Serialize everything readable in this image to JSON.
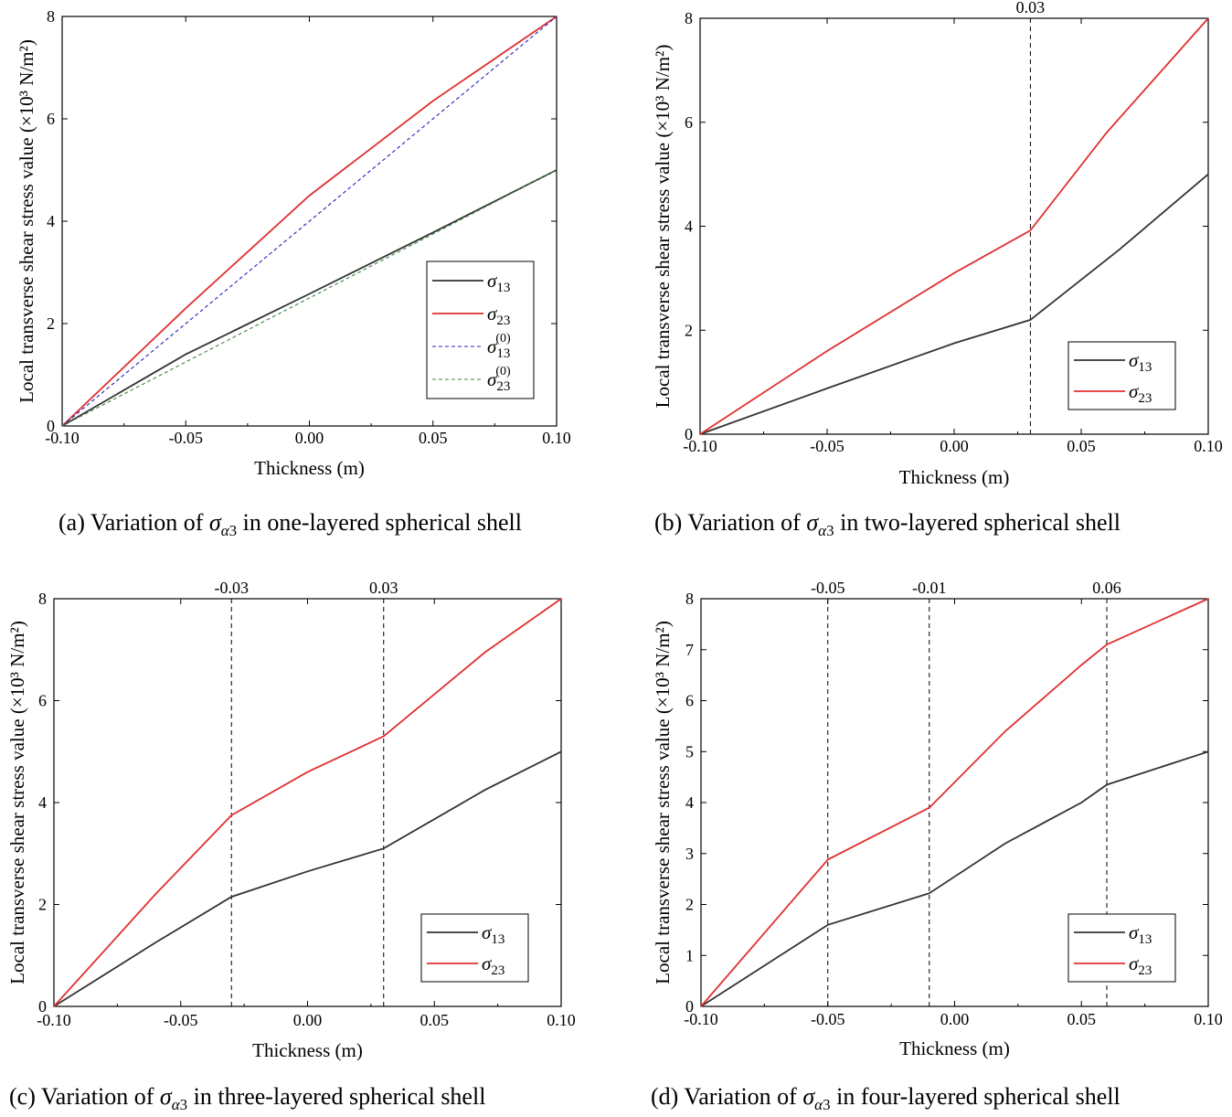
{
  "captions": {
    "a": {
      "label": "(a)",
      "pre": "Variation of",
      "sym": "σ",
      "sub_greek": "α",
      "sub_digit": "3",
      "post": "in one-layered spherical shell"
    },
    "b": {
      "label": "(b)",
      "pre": "Variation of",
      "sym": "σ",
      "sub_greek": "α",
      "sub_digit": "3",
      "post": "in two-layered spherical shell"
    },
    "c": {
      "label": "(c)",
      "pre": "Variation of",
      "sym": "σ",
      "sub_greek": "α",
      "sub_digit": "3",
      "post": "in three-layered spherical shell"
    },
    "d": {
      "label": "(d)",
      "pre": "Variation of",
      "sym": "σ",
      "sub_greek": "α",
      "sub_digit": "3",
      "post": "in four-layered spherical shell"
    }
  },
  "chart_data": [
    {
      "type": "line",
      "xlabel": "Thickness (m)",
      "ylabel": "Local transverse shear stress value (×10³ N/m²)",
      "xlim": [
        -0.1,
        0.1
      ],
      "ylim": [
        0,
        8
      ],
      "xticks": [
        "-0.10",
        "-0.05",
        "0.00",
        "0.05",
        "0.10"
      ],
      "yticks": [
        "0",
        "2",
        "4",
        "6",
        "8"
      ],
      "interfaces": [],
      "legend_position": "bottom-right",
      "series": [
        {
          "name": "σ13",
          "color": "#333333",
          "dash": "solid",
          "x": [
            -0.1,
            -0.05,
            0.0,
            0.05,
            0.1
          ],
          "y": [
            0,
            1.4,
            2.58,
            3.78,
            5.0
          ]
        },
        {
          "name": "σ23",
          "color": "#e03030",
          "dash": "solid",
          "x": [
            -0.1,
            -0.05,
            0.0,
            0.05,
            0.1
          ],
          "y": [
            0,
            2.3,
            4.5,
            6.35,
            8.0
          ]
        },
        {
          "name": "σ13(0)",
          "color": "#2020c0",
          "dash": "dashed",
          "x": [
            -0.1,
            0.1
          ],
          "y": [
            0,
            8.0
          ]
        },
        {
          "name": "σ23(0)",
          "color": "#3a8a3a",
          "dash": "dashed",
          "x": [
            -0.1,
            0.1
          ],
          "y": [
            0,
            5.0
          ]
        }
      ]
    },
    {
      "type": "line",
      "xlabel": "Thickness (m)",
      "ylabel": "Local transverse shear stress value (×10³ N/m²)",
      "xlim": [
        -0.1,
        0.1
      ],
      "ylim": [
        0,
        8
      ],
      "xticks": [
        "-0.10",
        "-0.05",
        "0.00",
        "0.05",
        "0.10"
      ],
      "yticks": [
        "0",
        "2",
        "4",
        "6",
        "8"
      ],
      "interfaces": [
        {
          "x": 0.03,
          "label": "0.03"
        }
      ],
      "legend_position": "bottom-right",
      "series": [
        {
          "name": "σ13",
          "color": "#333333",
          "dash": "solid",
          "x": [
            -0.1,
            -0.05,
            0.0,
            0.03,
            0.065,
            0.1
          ],
          "y": [
            0,
            0.88,
            1.75,
            2.2,
            3.55,
            5.0
          ]
        },
        {
          "name": "σ23",
          "color": "#e03030",
          "dash": "solid",
          "x": [
            -0.1,
            -0.05,
            0.0,
            0.03,
            0.06,
            0.1
          ],
          "y": [
            0,
            1.6,
            3.1,
            3.92,
            5.8,
            8.0
          ]
        }
      ]
    },
    {
      "type": "line",
      "xlabel": "Thickness (m)",
      "ylabel": "Local transverse shear stress value (×10³ N/m²)",
      "xlim": [
        -0.1,
        0.1
      ],
      "ylim": [
        0,
        8
      ],
      "xticks": [
        "-0.10",
        "-0.05",
        "0.00",
        "0.05",
        "0.10"
      ],
      "yticks": [
        "0",
        "2",
        "4",
        "6",
        "8"
      ],
      "interfaces": [
        {
          "x": -0.03,
          "label": "-0.03"
        },
        {
          "x": 0.03,
          "label": "0.03"
        }
      ],
      "legend_position": "bottom-right",
      "series": [
        {
          "name": "σ13",
          "color": "#333333",
          "dash": "solid",
          "x": [
            -0.1,
            -0.06,
            -0.03,
            0.0,
            0.03,
            0.07,
            0.1
          ],
          "y": [
            0,
            1.25,
            2.15,
            2.65,
            3.1,
            4.25,
            5.0
          ]
        },
        {
          "name": "σ23",
          "color": "#e03030",
          "dash": "solid",
          "x": [
            -0.1,
            -0.06,
            -0.03,
            0.0,
            0.03,
            0.07,
            0.1
          ],
          "y": [
            0,
            2.2,
            3.75,
            4.6,
            5.3,
            6.95,
            8.0
          ]
        }
      ]
    },
    {
      "type": "line",
      "xlabel": "Thickness (m)",
      "ylabel": "Local transverse shear stress value (×10³ N/m²)",
      "xlim": [
        -0.1,
        0.1
      ],
      "ylim": [
        0,
        8
      ],
      "xticks": [
        "-0.10",
        "-0.05",
        "0.00",
        "0.05",
        "0.10"
      ],
      "yticks": [
        "0",
        "1",
        "2",
        "3",
        "4",
        "5",
        "6",
        "7",
        "8"
      ],
      "interfaces": [
        {
          "x": -0.05,
          "label": "-0.05"
        },
        {
          "x": -0.01,
          "label": "-0.01"
        },
        {
          "x": 0.06,
          "label": "0.06"
        }
      ],
      "legend_position": "bottom-right",
      "series": [
        {
          "name": "σ13",
          "color": "#333333",
          "dash": "solid",
          "x": [
            -0.1,
            -0.05,
            -0.01,
            0.02,
            0.05,
            0.06,
            0.1
          ],
          "y": [
            0,
            1.6,
            2.22,
            3.2,
            4.0,
            4.35,
            5.0
          ]
        },
        {
          "name": "σ23",
          "color": "#e03030",
          "dash": "solid",
          "x": [
            -0.1,
            -0.05,
            -0.01,
            0.02,
            0.05,
            0.06,
            0.1
          ],
          "y": [
            0,
            2.88,
            3.9,
            5.4,
            6.7,
            7.1,
            8.0
          ]
        }
      ]
    }
  ]
}
